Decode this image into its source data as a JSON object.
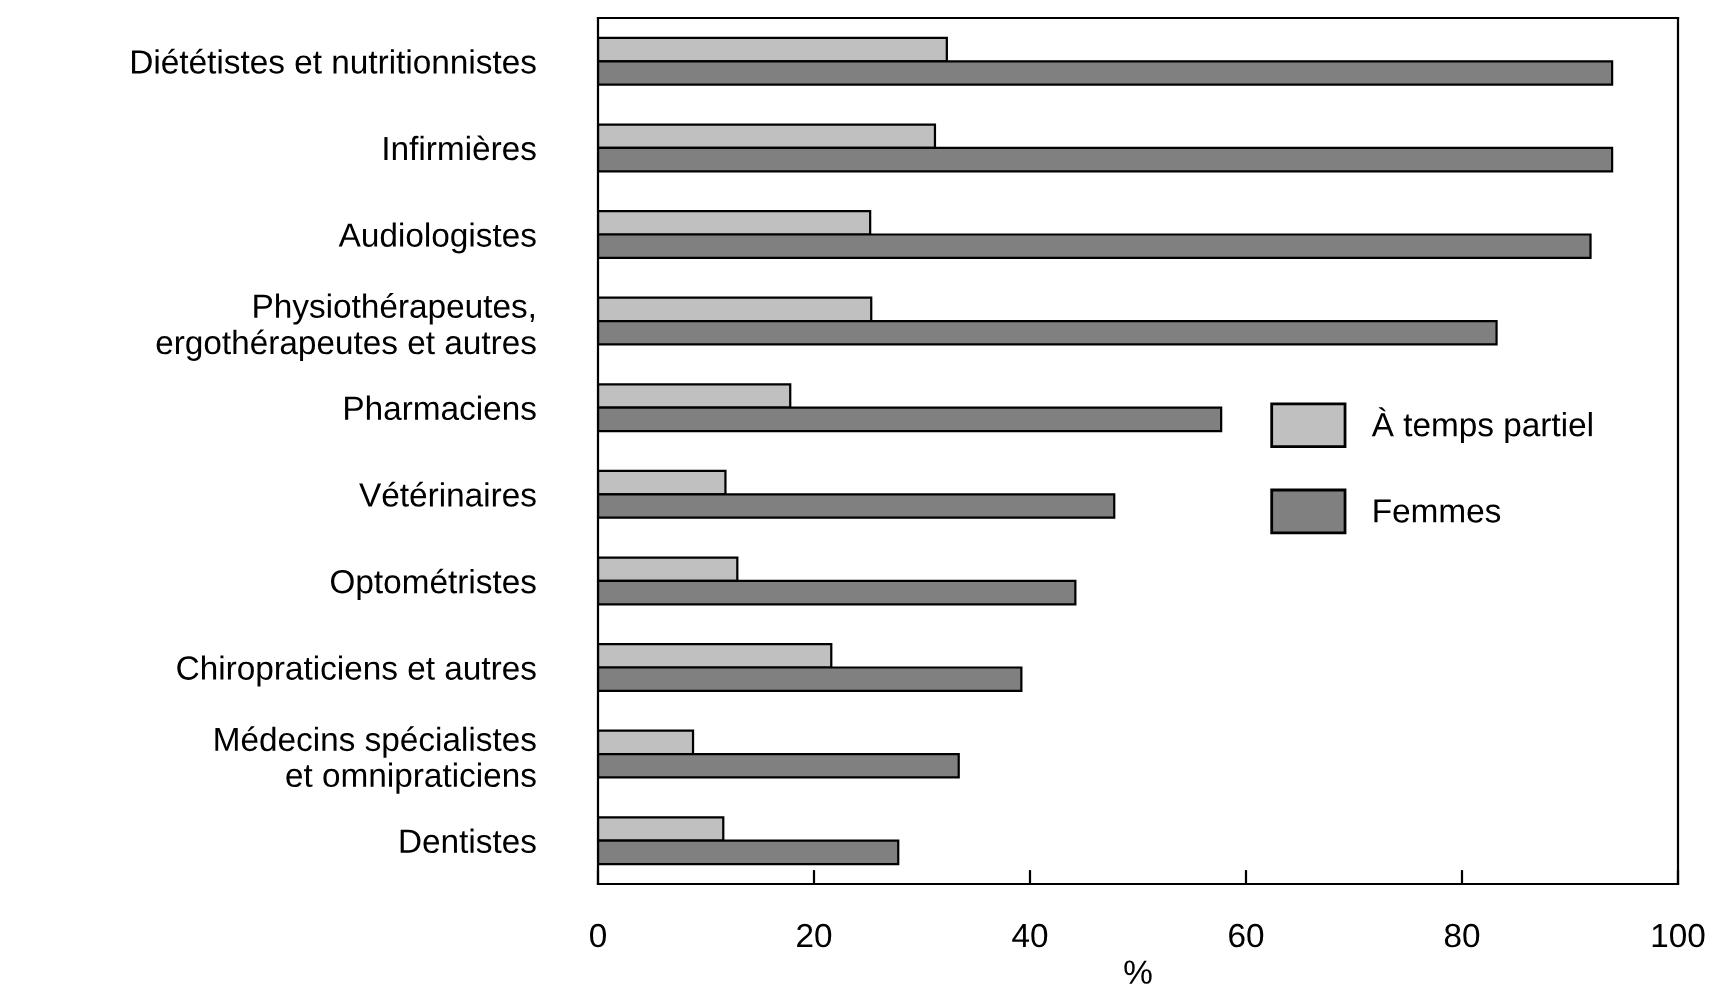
{
  "chart_data": {
    "type": "bar",
    "orientation": "horizontal",
    "xlabel": "%",
    "categories": [
      "Diététistes et nutritionnistes",
      "Infirmières",
      "Audiologistes",
      "Physiothérapeutes,\nergothérapeutes et autres",
      "Pharmaciens",
      "Vétérinaires",
      "Optométristes",
      "Chiropraticiens et autres",
      "Médecins spécialistes\net omnipraticiens",
      "Dentistes"
    ],
    "series": [
      {
        "name": "À temps partiel",
        "color": "#c0c0c0",
        "values": [
          32.3,
          31.2,
          25.2,
          25.3,
          17.8,
          11.8,
          12.9,
          21.6,
          8.8,
          11.6
        ]
      },
      {
        "name": "Femmes",
        "color": "#808080",
        "values": [
          93.9,
          93.9,
          91.9,
          83.2,
          57.7,
          47.8,
          44.2,
          39.2,
          33.4,
          27.8
        ]
      }
    ],
    "xlim": [
      0,
      100
    ],
    "xticks": [
      0,
      20,
      40,
      60,
      80,
      100
    ],
    "grid": false,
    "legend": "right"
  }
}
